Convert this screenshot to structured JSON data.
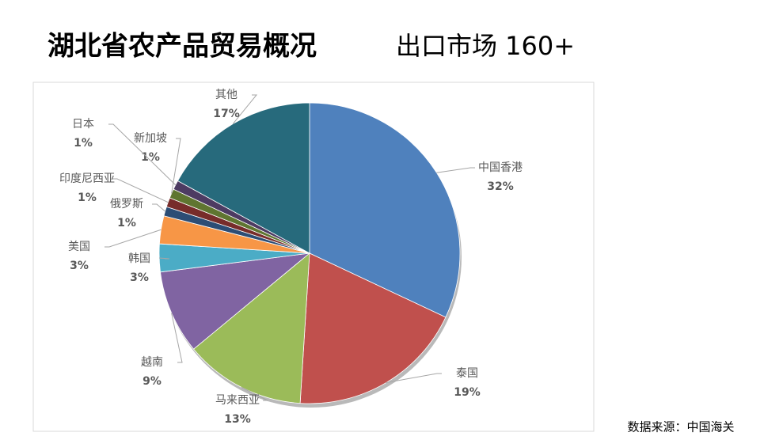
{
  "chart_data": {
    "type": "pie",
    "title": "湖北省农产品贸易概况",
    "subtitle": "出口市场 160+",
    "source": "数据来源：中国海关",
    "categories": [
      "中国香港",
      "泰国",
      "马来西亚",
      "越南",
      "韩国",
      "美国",
      "俄罗斯",
      "印度尼西亚",
      "新加坡",
      "日本",
      "其他"
    ],
    "values": [
      32,
      19,
      13,
      9,
      3,
      3,
      1,
      1,
      1,
      1,
      17
    ],
    "value_labels": [
      "32%",
      "19%",
      "13%",
      "9%",
      "3%",
      "3%",
      "1%",
      "1%",
      "1%",
      "1%",
      "17%"
    ],
    "colors": [
      "#4f81bd",
      "#c0504d",
      "#9bbb59",
      "#8064a2",
      "#4bacc6",
      "#f79646",
      "#2c4d75",
      "#772c2a",
      "#5f7530",
      "#4d3b62",
      "#276a7c"
    ]
  }
}
